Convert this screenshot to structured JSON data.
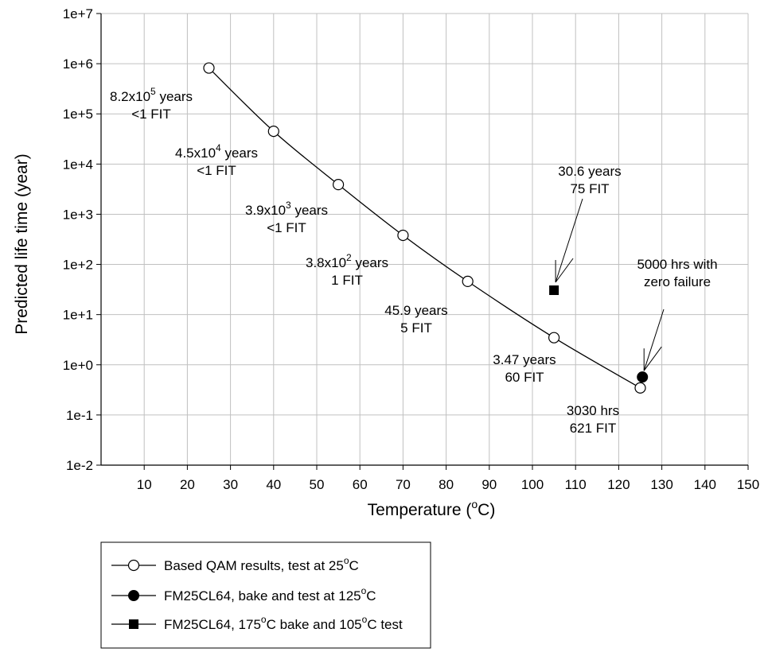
{
  "chart_data": {
    "type": "line",
    "title": "",
    "xlabel": "Temperature",
    "xlabel_unit_open": "(",
    "xlabel_unit_sup": "o",
    "xlabel_unit_close": "C)",
    "ylabel": "Predicted life time (year)",
    "xlim": [
      0,
      150
    ],
    "ylim": [
      0.01,
      10000000
    ],
    "y_scale": "log",
    "grid": true,
    "x_ticks": [
      10,
      20,
      30,
      40,
      50,
      60,
      70,
      80,
      90,
      100,
      110,
      120,
      130,
      140,
      150
    ],
    "y_ticks": [
      {
        "value": 0.01,
        "label": "1e-2"
      },
      {
        "value": 0.1,
        "label": "1e-1"
      },
      {
        "value": 1,
        "label": "1e+0"
      },
      {
        "value": 10,
        "label": "1e+1"
      },
      {
        "value": 100,
        "label": "1e+2"
      },
      {
        "value": 1000,
        "label": "1e+3"
      },
      {
        "value": 10000,
        "label": "1e+4"
      },
      {
        "value": 100000,
        "label": "1e+5"
      },
      {
        "value": 1000000,
        "label": "1e+6"
      },
      {
        "value": 10000000,
        "label": "1e+7"
      }
    ],
    "series": [
      {
        "legend_parts": [
          "Based QAM results, test at 25",
          "o",
          "C"
        ],
        "marker": "circle-open",
        "line": true,
        "x": [
          25,
          40,
          55,
          70,
          85,
          105,
          125
        ],
        "y": [
          820000,
          45000,
          3900,
          380,
          45.9,
          3.47,
          0.346
        ]
      },
      {
        "legend_parts": [
          "FM25CL64, bake and test at 125",
          "o",
          "C"
        ],
        "marker": "circle-filled",
        "line": false,
        "x": [
          125.5
        ],
        "y": [
          0.57
        ]
      },
      {
        "legend_parts": [
          "FM25CL64, 175",
          "o",
          "C bake and 105",
          "o",
          "C test"
        ],
        "marker": "square-filled",
        "line": false,
        "x": [
          105
        ],
        "y": [
          30.6
        ]
      }
    ],
    "legend_position": "bottom-left",
    "annotations": [
      {
        "lines": [
          [
            "8.2x10",
            "5",
            " years"
          ],
          [
            "<1 FIT"
          ]
        ]
      },
      {
        "lines": [
          [
            "4.5x10",
            "4",
            " years"
          ],
          [
            "<1 FIT"
          ]
        ]
      },
      {
        "lines": [
          [
            "3.9x10",
            "3",
            " years"
          ],
          [
            "<1 FIT"
          ]
        ]
      },
      {
        "lines": [
          [
            "3.8x10",
            "2",
            " years"
          ],
          [
            "1 FIT"
          ]
        ]
      },
      {
        "lines": [
          [
            "45.9 years"
          ],
          [
            "5 FIT"
          ]
        ]
      },
      {
        "lines": [
          [
            "3.47 years"
          ],
          [
            "60 FIT"
          ]
        ]
      },
      {
        "lines": [
          [
            "3030 hrs"
          ],
          [
            "621 FIT"
          ]
        ]
      },
      {
        "lines": [
          [
            "30.6 years"
          ],
          [
            "75 FIT"
          ]
        ]
      },
      {
        "lines": [
          [
            "5000 hrs with"
          ],
          [
            "zero failure"
          ]
        ]
      }
    ]
  }
}
